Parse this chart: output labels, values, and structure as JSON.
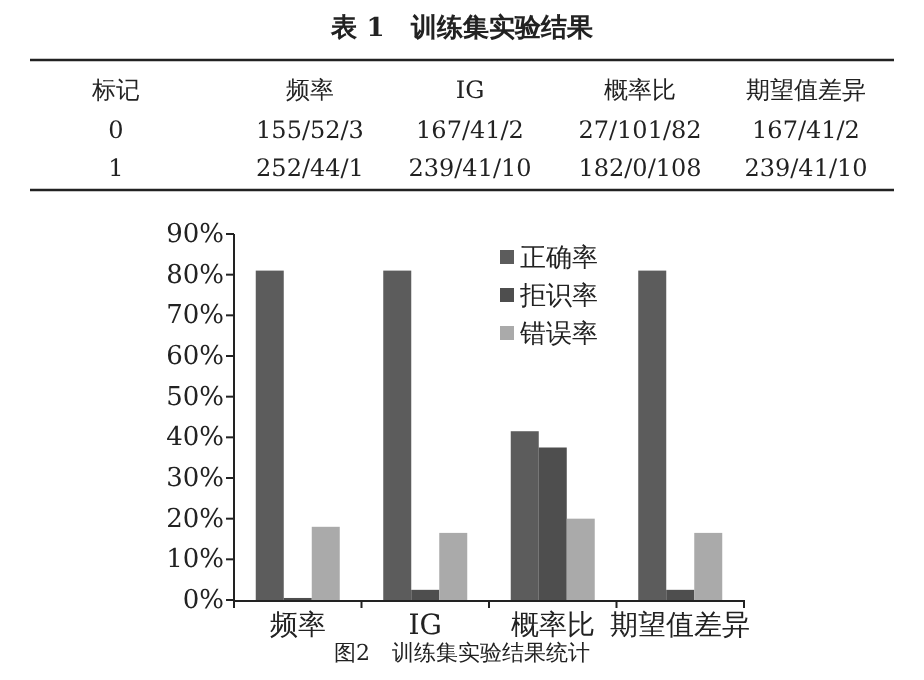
{
  "chart_data": [
    {
      "type": "other",
      "title": "表 1　训练集实验结果",
      "ylabel": "标记",
      "categories": [
        "频率",
        "IG",
        "概率比",
        "期望值差异"
      ],
      "y_categories": [
        "0",
        "1"
      ],
      "cell_labels": [
        [
          "155/52/3",
          "167/41/2",
          "27/101/82",
          "167/41/2"
        ],
        [
          "252/44/1",
          "239/41/10",
          "182/0/108",
          "239/41/10"
        ]
      ]
    },
    {
      "type": "bar",
      "categories": [
        "频率",
        "IG",
        "概率比",
        "期望值差异"
      ],
      "series": [
        {
          "name": "正确率",
          "color": "#5c5c5c",
          "values": [
            81,
            81,
            41.5,
            81
          ]
        },
        {
          "name": "拒识率",
          "color": "#4e4e4e",
          "values": [
            0.5,
            2.5,
            37.5,
            2.5
          ]
        },
        {
          "name": "错误率",
          "color": "#aaaaaa",
          "values": [
            18,
            16.5,
            20,
            16.5
          ]
        }
      ],
      "ylim": [
        0,
        90
      ],
      "yticks": [
        {
          "value": 0,
          "label": "0%"
        },
        {
          "value": 10,
          "label": "10%"
        },
        {
          "value": 20,
          "label": "20%"
        },
        {
          "value": 30,
          "label": "30%"
        },
        {
          "value": 40,
          "label": "40%"
        },
        {
          "value": 50,
          "label": "50%"
        },
        {
          "value": 60,
          "label": "60%"
        },
        {
          "value": 70,
          "label": "70%"
        },
        {
          "value": 80,
          "label": "80%"
        },
        {
          "value": 90,
          "label": "90%"
        }
      ],
      "legend": "top right",
      "annotations": [
        "图2　训练集实验结果统计"
      ]
    }
  ]
}
